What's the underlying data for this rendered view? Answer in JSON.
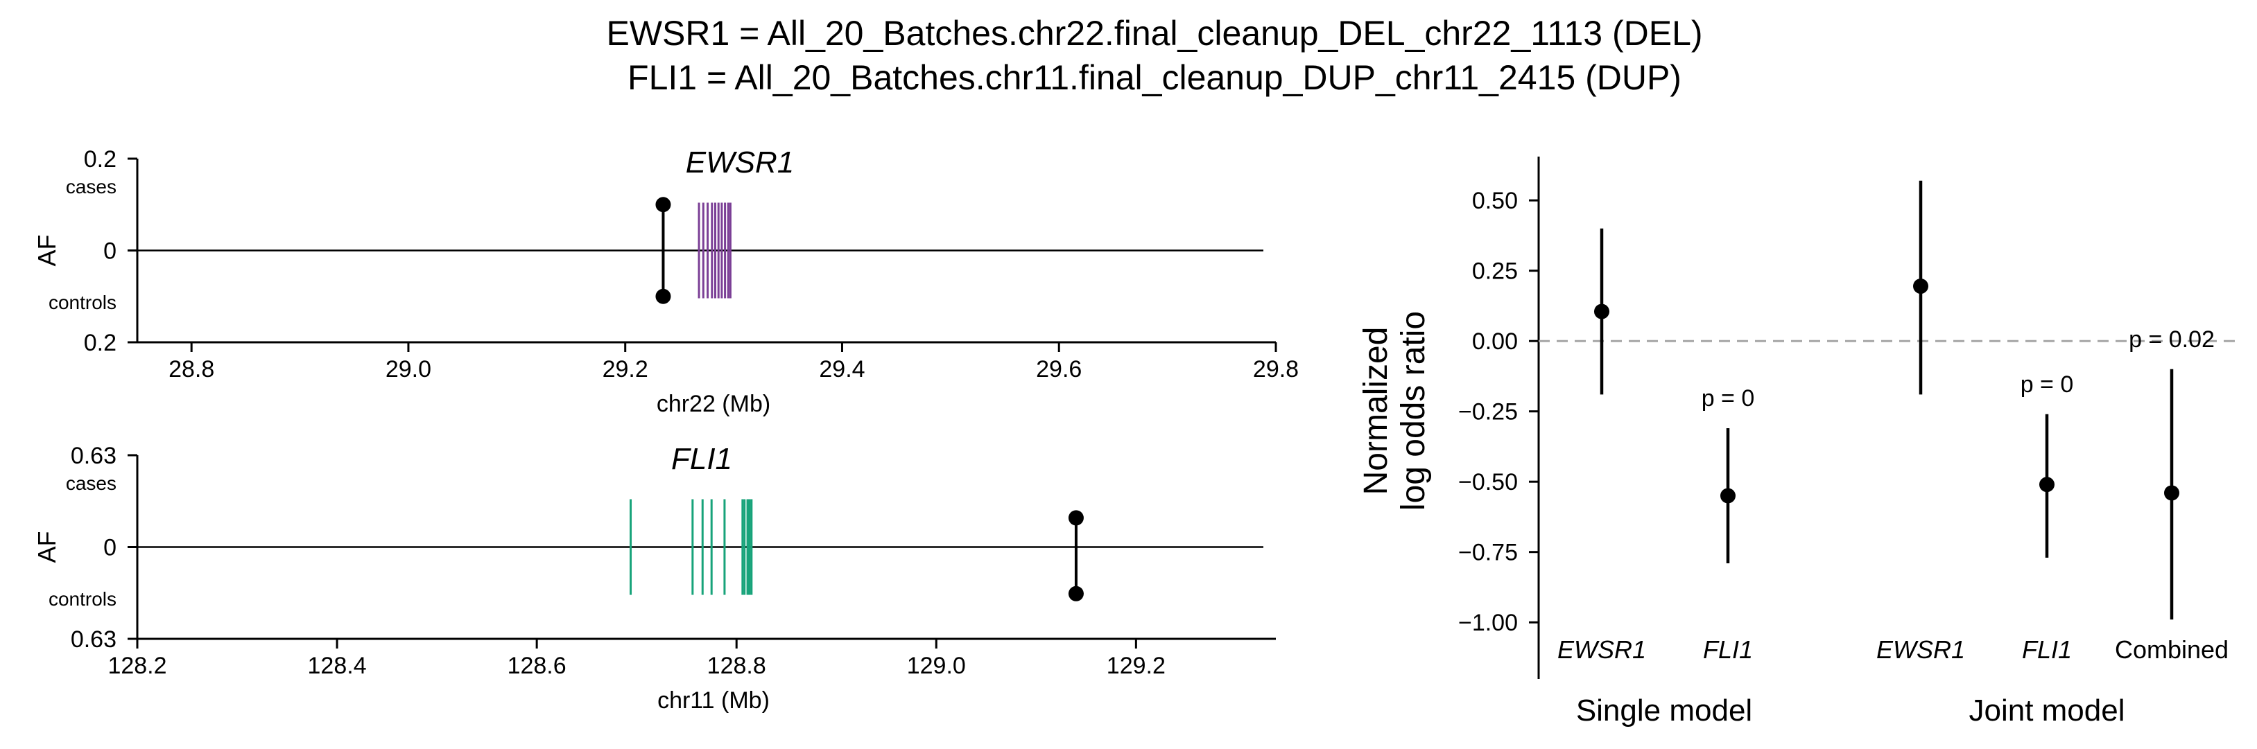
{
  "figure": {
    "title_line1": "EWSR1 = All_20_Batches.chr22.final_cleanup_DEL_chr22_1113 (DEL)",
    "title_line2": "FLI1 = All_20_Batches.chr11.final_cleanup_DUP_chr11_2415 (DUP)"
  },
  "chart_data": [
    {
      "type": "scatter",
      "panel": "ewsr1-locus",
      "gene": "EWSR1",
      "xlabel": "chr22 (Mb)",
      "ylabel": "AF",
      "y_top_label": "cases",
      "y_bottom_label": "controls",
      "ytick_labels": [
        "0.2",
        "0",
        "0.2"
      ],
      "xlim": [
        28.75,
        29.8
      ],
      "ylim": [
        -0.2,
        0.2
      ],
      "xticks": [
        28.8,
        29.0,
        29.2,
        29.4,
        29.6,
        29.8
      ],
      "xtick_labels": [
        "28.8",
        "29.0",
        "29.2",
        "29.4",
        "29.6",
        "29.8"
      ],
      "variant": {
        "x": 29.235,
        "cases_af": 0.1,
        "controls_af": 0.1
      },
      "gene_color": "#7b3f96",
      "exons_mb": [
        29.268,
        29.272,
        29.276,
        29.28,
        29.283,
        29.286,
        29.289,
        29.292,
        29.295,
        29.297
      ]
    },
    {
      "type": "scatter",
      "panel": "fli1-locus",
      "gene": "FLI1",
      "xlabel": "chr11 (Mb)",
      "ylabel": "AF",
      "y_top_label": "cases",
      "y_bottom_label": "controls",
      "ytick_labels": [
        "0.63",
        "0",
        "0.63"
      ],
      "xlim": [
        128.2,
        129.34
      ],
      "ylim": [
        -0.63,
        0.63
      ],
      "xticks": [
        128.2,
        128.4,
        128.6,
        128.8,
        129.0,
        129.2
      ],
      "xtick_labels": [
        "128.2",
        "128.4",
        "128.6",
        "128.8",
        "129.0",
        "129.2"
      ],
      "variant": {
        "x": 129.14,
        "cases_af": 0.2,
        "controls_af": 0.32
      },
      "gene_color": "#17a37a",
      "exons_mb": [
        128.694,
        128.756,
        128.766,
        128.775,
        128.788,
        128.806,
        128.808,
        128.811,
        128.813,
        128.815
      ]
    },
    {
      "type": "scatter",
      "panel": "odds-ratio",
      "ylabel_line1": "Normalized",
      "ylabel_line2": "log odds ratio",
      "ylim": [
        -1.05,
        0.65
      ],
      "yticks": [
        -1.0,
        -0.75,
        -0.5,
        -0.25,
        0.0,
        0.25,
        0.5
      ],
      "ytick_labels": [
        "−1.00",
        "−0.75",
        "−0.50",
        "−0.25",
        "0.00",
        "0.25",
        "0.50"
      ],
      "reference_line": 0.0,
      "points": [
        {
          "label": "EWSR1",
          "group": "Single model",
          "estimate": 0.105,
          "ci": [
            -0.19,
            0.4
          ],
          "pvalue_label": ""
        },
        {
          "label": "FLI1",
          "group": "Single model",
          "estimate": -0.55,
          "ci": [
            -0.79,
            -0.31
          ],
          "pvalue_label": "p = 0"
        },
        {
          "label": "EWSR1",
          "group": "Joint model",
          "estimate": 0.195,
          "ci": [
            -0.19,
            0.57
          ],
          "pvalue_label": ""
        },
        {
          "label": "FLI1",
          "group": "Joint model",
          "estimate": -0.51,
          "ci": [
            -0.77,
            -0.26
          ],
          "pvalue_label": "p = 0"
        },
        {
          "label": "Combined",
          "group": "Joint model",
          "estimate": -0.54,
          "ci": [
            -0.99,
            -0.1
          ],
          "pvalue_label": "p = 0.02"
        }
      ],
      "groups": [
        "Single model",
        "Joint model"
      ]
    }
  ]
}
